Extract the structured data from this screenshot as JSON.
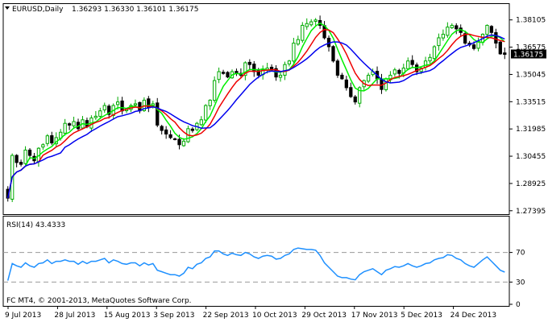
{
  "header": {
    "symbol_label": "EURUSD,Daily",
    "ohlc": "1.36293 1.36330 1.36101 1.36175"
  },
  "rsi_header": "RSI(14) 43.4333",
  "copyright": "FC MT4, © 2001-2013, MetaQuotes Software Corp.",
  "current_price_label": "1.36175",
  "chart_data": {
    "type": "candlestick",
    "symbol": "EURUSD",
    "timeframe": "Daily",
    "price_axis": {
      "ylim": [
        1.2725,
        1.3895
      ],
      "ticks": [
        "1.38105",
        "1.36575",
        "1.35045",
        "1.33515",
        "1.31985",
        "1.30455",
        "1.28925",
        "1.27395"
      ]
    },
    "x_tick_labels": [
      "9 Jul 2013",
      "28 Jul 2013",
      "15 Aug 2013",
      "3 Sep 2013",
      "22 Sep 2013",
      "10 Oct 2013",
      "29 Oct 2013",
      "17 Nov 2013",
      "5 Dec 2013",
      "24 Dec 2013"
    ],
    "closes": [
      1.281,
      1.305,
      1.301,
      1.3,
      1.308,
      1.305,
      1.302,
      1.309,
      1.311,
      1.316,
      1.312,
      1.315,
      1.318,
      1.323,
      1.322,
      1.324,
      1.32,
      1.325,
      1.321,
      1.326,
      1.327,
      1.33,
      1.333,
      1.328,
      1.333,
      1.335,
      1.33,
      1.331,
      1.333,
      1.334,
      1.33,
      1.336,
      1.332,
      1.334,
      1.322,
      1.319,
      1.317,
      1.315,
      1.314,
      1.311,
      1.313,
      1.32,
      1.319,
      1.323,
      1.325,
      1.333,
      1.336,
      1.347,
      1.352,
      1.351,
      1.349,
      1.352,
      1.351,
      1.35,
      1.357,
      1.356,
      1.352,
      1.35,
      1.353,
      1.354,
      1.353,
      1.349,
      1.35,
      1.356,
      1.358,
      1.368,
      1.37,
      1.378,
      1.379,
      1.38,
      1.381,
      1.378,
      1.371,
      1.366,
      1.358,
      1.35,
      1.348,
      1.343,
      1.338,
      1.335,
      1.343,
      1.347,
      1.35,
      1.352,
      1.348,
      1.342,
      1.348,
      1.35,
      1.353,
      1.351,
      1.354,
      1.358,
      1.356,
      1.352,
      1.354,
      1.358,
      1.36,
      1.366,
      1.371,
      1.373,
      1.377,
      1.378,
      1.376,
      1.374,
      1.368,
      1.367,
      1.365,
      1.369,
      1.373,
      1.378,
      1.374,
      1.368,
      1.362,
      1.3617
    ],
    "rsi": {
      "period": 14,
      "last": 43.4333,
      "ylim": [
        0,
        100
      ],
      "levels": [
        30,
        70
      ],
      "tick_labels": [
        "70",
        "30",
        "0"
      ],
      "values": [
        32,
        55,
        52,
        50,
        56,
        52,
        50,
        55,
        56,
        60,
        55,
        58,
        58,
        60,
        58,
        58,
        54,
        58,
        55,
        58,
        58,
        60,
        62,
        56,
        60,
        58,
        55,
        54,
        56,
        56,
        52,
        56,
        53,
        55,
        46,
        44,
        42,
        40,
        40,
        38,
        42,
        50,
        48,
        54,
        56,
        62,
        64,
        72,
        72,
        68,
        66,
        69,
        67,
        66,
        70,
        68,
        64,
        62,
        65,
        66,
        65,
        61,
        62,
        66,
        68,
        74,
        76,
        75,
        74,
        74,
        73,
        66,
        56,
        50,
        44,
        38,
        36,
        36,
        34,
        33,
        40,
        44,
        46,
        48,
        44,
        40,
        46,
        48,
        51,
        50,
        52,
        55,
        52,
        50,
        52,
        55,
        56,
        60,
        62,
        63,
        67,
        66,
        62,
        60,
        55,
        52,
        50,
        55,
        60,
        64,
        58,
        52,
        46,
        43.4333
      ]
    },
    "series": [
      {
        "name": "MA (green)",
        "color": "#00ee00"
      },
      {
        "name": "MA (red)",
        "color": "#ee0000"
      },
      {
        "name": "MA (blue)",
        "color": "#0000ee"
      }
    ],
    "colors": {
      "up": "#00aa00",
      "down": "#000000",
      "rsi": "#1e90ff",
      "price_label_bg": "#000000"
    }
  }
}
